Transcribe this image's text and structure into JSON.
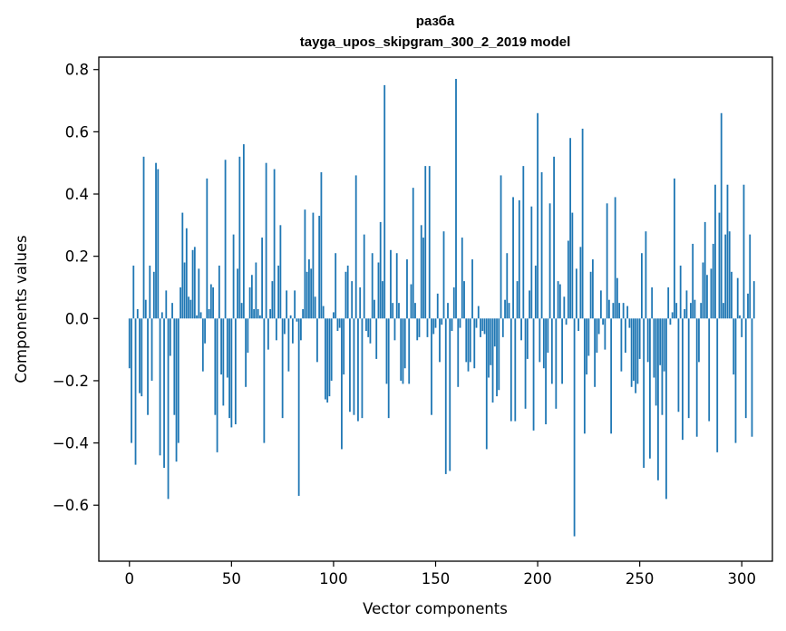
{
  "chart_data": {
    "type": "bar",
    "title_line1": "разба",
    "title_line2": "tayga_upos_skipgram_300_2_2019 model",
    "xlabel": "Vector components",
    "ylabel": "Components values",
    "xlim": [
      -15,
      315
    ],
    "ylim": [
      -0.78,
      0.84
    ],
    "xticks": [
      0,
      50,
      100,
      150,
      200,
      250,
      300
    ],
    "xtick_labels": [
      "0",
      "50",
      "100",
      "150",
      "200",
      "250",
      "300"
    ],
    "yticks": [
      -0.6,
      -0.4,
      -0.2,
      0.0,
      0.2,
      0.4,
      0.6,
      0.8
    ],
    "ytick_labels": [
      "−0.6",
      "−0.4",
      "−0.2",
      "0.0",
      "0.2",
      "0.4",
      "0.6",
      "0.8"
    ],
    "bar_color": "#1f77b4",
    "values": [
      -0.16,
      -0.4,
      0.17,
      -0.47,
      0.03,
      -0.24,
      -0.25,
      0.52,
      0.06,
      -0.31,
      0.17,
      -0.2,
      0.15,
      0.5,
      0.48,
      -0.44,
      0.02,
      -0.48,
      0.09,
      -0.58,
      -0.12,
      0.05,
      -0.31,
      -0.46,
      -0.4,
      0.1,
      0.34,
      0.18,
      0.29,
      0.07,
      0.06,
      0.22,
      0.23,
      0.01,
      0.16,
      0.02,
      -0.17,
      -0.08,
      0.45,
      0.03,
      0.11,
      0.1,
      -0.31,
      -0.43,
      0.17,
      -0.18,
      -0.28,
      0.51,
      -0.19,
      -0.32,
      -0.35,
      0.27,
      -0.34,
      0.16,
      0.52,
      0.05,
      0.56,
      -0.22,
      -0.11,
      0.1,
      0.14,
      0.03,
      0.18,
      0.03,
      0.01,
      0.26,
      -0.4,
      0.5,
      -0.1,
      0.03,
      0.12,
      0.48,
      -0.07,
      0.17,
      0.3,
      -0.32,
      -0.05,
      0.09,
      -0.17,
      0.01,
      -0.08,
      0.09,
      -0.01,
      -0.57,
      -0.07,
      0.03,
      0.35,
      0.15,
      0.19,
      0.16,
      0.34,
      0.07,
      -0.14,
      0.33,
      0.47,
      0.04,
      -0.26,
      -0.27,
      -0.25,
      -0.2,
      0.02,
      0.21,
      -0.04,
      -0.03,
      -0.42,
      -0.18,
      0.15,
      0.17,
      -0.3,
      0.12,
      -0.31,
      0.46,
      -0.33,
      0.1,
      -0.32,
      0.27,
      -0.04,
      -0.06,
      -0.08,
      0.21,
      0.06,
      -0.13,
      0.18,
      0.31,
      0.12,
      0.75,
      -0.21,
      -0.32,
      0.22,
      0.05,
      -0.07,
      0.21,
      0.05,
      -0.2,
      -0.21,
      -0.16,
      0.19,
      -0.21,
      0.11,
      0.42,
      0.05,
      -0.07,
      -0.06,
      0.3,
      0.26,
      0.49,
      -0.06,
      0.49,
      -0.31,
      -0.05,
      -0.03,
      0.08,
      -0.14,
      -0.02,
      0.28,
      -0.5,
      0.05,
      -0.49,
      -0.04,
      0.1,
      0.77,
      -0.22,
      -0.03,
      0.26,
      0.12,
      -0.14,
      -0.17,
      -0.14,
      0.19,
      -0.16,
      -0.03,
      0.04,
      -0.06,
      -0.04,
      -0.05,
      -0.42,
      -0.19,
      -0.15,
      -0.27,
      -0.09,
      -0.25,
      -0.23,
      0.46,
      -0.06,
      0.06,
      0.21,
      0.05,
      -0.33,
      0.39,
      -0.33,
      0.12,
      0.38,
      -0.07,
      0.49,
      -0.29,
      -0.13,
      0.09,
      0.36,
      -0.36,
      0.17,
      0.66,
      -0.14,
      0.47,
      -0.16,
      -0.34,
      -0.11,
      0.37,
      -0.21,
      0.52,
      -0.29,
      0.12,
      0.11,
      -0.21,
      0.07,
      -0.02,
      0.25,
      0.58,
      0.34,
      -0.7,
      0.16,
      -0.04,
      0.23,
      0.61,
      -0.37,
      -0.18,
      -0.12,
      0.15,
      0.19,
      -0.22,
      -0.11,
      -0.05,
      0.09,
      -0.02,
      -0.1,
      0.37,
      0.06,
      -0.37,
      0.05,
      0.39,
      0.13,
      0.05,
      -0.17,
      0.05,
      -0.11,
      0.04,
      -0.03,
      -0.22,
      -0.2,
      -0.24,
      -0.21,
      -0.13,
      0.21,
      -0.48,
      0.28,
      -0.14,
      -0.45,
      0.1,
      -0.19,
      -0.28,
      -0.52,
      -0.15,
      -0.31,
      -0.17,
      -0.58,
      0.1,
      -0.02,
      0.02,
      0.45,
      0.05,
      -0.3,
      0.17,
      -0.39,
      0.03,
      0.09,
      -0.32,
      0.05,
      0.24,
      0.06,
      -0.38,
      -0.14,
      0.05,
      0.18,
      0.31,
      0.14,
      -0.33,
      0.16,
      0.24,
      0.43,
      -0.43,
      0.34,
      0.66,
      0.05,
      0.27,
      0.43,
      0.28,
      0.15,
      -0.18,
      -0.4,
      0.13,
      0.01,
      -0.06,
      0.43,
      -0.32,
      0.08,
      0.27,
      -0.38,
      0.12
    ]
  }
}
